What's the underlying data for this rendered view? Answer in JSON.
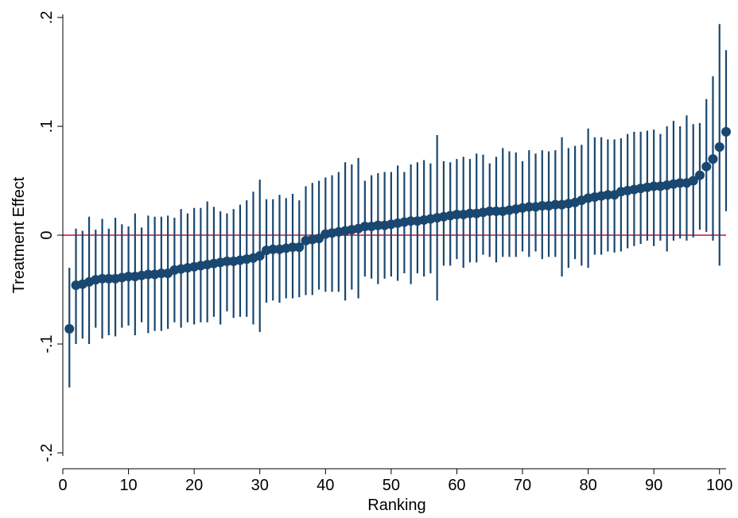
{
  "chart_data": {
    "type": "scatter",
    "title": "",
    "xlabel": "Ranking",
    "ylabel": "Treatment Effect",
    "xlim": [
      0,
      101
    ],
    "ylim": [
      -0.2,
      0.2
    ],
    "x_ticks": [
      0,
      10,
      20,
      30,
      40,
      50,
      60,
      70,
      80,
      90,
      100
    ],
    "x_tick_labels": [
      "0",
      "10",
      "20",
      "30",
      "40",
      "50",
      "60",
      "70",
      "80",
      "90",
      "100"
    ],
    "y_ticks": [
      -0.2,
      -0.1,
      0,
      0.1,
      0.2
    ],
    "y_tick_labels": [
      "-.2",
      "-.1",
      "0",
      ".1",
      ".2"
    ],
    "grid": false,
    "legend": "none",
    "reference_line": {
      "y": 0,
      "color": "#c0143c"
    },
    "series": [
      {
        "marker_color": "#1a476f",
        "x": [
          1,
          2,
          3,
          4,
          5,
          6,
          7,
          8,
          9,
          10,
          11,
          12,
          13,
          14,
          15,
          16,
          17,
          18,
          19,
          20,
          21,
          22,
          23,
          24,
          25,
          26,
          27,
          28,
          29,
          30,
          31,
          32,
          33,
          34,
          35,
          36,
          37,
          38,
          39,
          40,
          41,
          42,
          43,
          44,
          45,
          46,
          47,
          48,
          49,
          50,
          51,
          52,
          53,
          54,
          55,
          56,
          57,
          58,
          59,
          60,
          61,
          62,
          63,
          64,
          65,
          66,
          67,
          68,
          69,
          70,
          71,
          72,
          73,
          74,
          75,
          76,
          77,
          78,
          79,
          80,
          81,
          82,
          83,
          84,
          85,
          86,
          87,
          88,
          89,
          90,
          91,
          92,
          93,
          94,
          95,
          96,
          97,
          98,
          99,
          100,
          101
        ],
        "y": [
          -0.086,
          -0.046,
          -0.045,
          -0.043,
          -0.041,
          -0.04,
          -0.04,
          -0.04,
          -0.039,
          -0.038,
          -0.038,
          -0.037,
          -0.036,
          -0.036,
          -0.035,
          -0.035,
          -0.032,
          -0.031,
          -0.03,
          -0.029,
          -0.028,
          -0.027,
          -0.026,
          -0.025,
          -0.024,
          -0.024,
          -0.023,
          -0.022,
          -0.021,
          -0.019,
          -0.014,
          -0.013,
          -0.013,
          -0.012,
          -0.011,
          -0.011,
          -0.005,
          -0.004,
          -0.003,
          0.001,
          0.002,
          0.003,
          0.004,
          0.005,
          0.006,
          0.008,
          0.008,
          0.009,
          0.009,
          0.01,
          0.011,
          0.012,
          0.013,
          0.013,
          0.014,
          0.015,
          0.016,
          0.017,
          0.018,
          0.019,
          0.019,
          0.02,
          0.02,
          0.021,
          0.022,
          0.022,
          0.022,
          0.023,
          0.024,
          0.025,
          0.026,
          0.026,
          0.027,
          0.027,
          0.028,
          0.028,
          0.029,
          0.03,
          0.032,
          0.034,
          0.035,
          0.036,
          0.037,
          0.037,
          0.04,
          0.041,
          0.042,
          0.043,
          0.044,
          0.045,
          0.045,
          0.046,
          0.047,
          0.048,
          0.048,
          0.05,
          0.055,
          0.063,
          0.07,
          0.081,
          0.095
        ],
        "ci_low": [
          -0.14,
          -0.1,
          -0.095,
          -0.1,
          -0.085,
          -0.095,
          -0.092,
          -0.093,
          -0.085,
          -0.083,
          -0.092,
          -0.08,
          -0.09,
          -0.088,
          -0.088,
          -0.086,
          -0.08,
          -0.085,
          -0.08,
          -0.082,
          -0.08,
          -0.08,
          -0.075,
          -0.082,
          -0.07,
          -0.076,
          -0.075,
          -0.075,
          -0.082,
          -0.089,
          -0.062,
          -0.06,
          -0.062,
          -0.058,
          -0.058,
          -0.057,
          -0.055,
          -0.055,
          -0.05,
          -0.052,
          -0.052,
          -0.052,
          -0.06,
          -0.05,
          -0.058,
          -0.038,
          -0.04,
          -0.045,
          -0.04,
          -0.038,
          -0.042,
          -0.035,
          -0.045,
          -0.035,
          -0.038,
          -0.035,
          -0.06,
          -0.028,
          -0.028,
          -0.022,
          -0.03,
          -0.025,
          -0.025,
          -0.018,
          -0.02,
          -0.025,
          -0.02,
          -0.02,
          -0.02,
          -0.015,
          -0.02,
          -0.015,
          -0.022,
          -0.02,
          -0.02,
          -0.038,
          -0.03,
          -0.022,
          -0.028,
          -0.03,
          -0.018,
          -0.018,
          -0.015,
          -0.016,
          -0.015,
          -0.012,
          -0.01,
          -0.008,
          -0.005,
          -0.01,
          -0.005,
          -0.015,
          -0.005,
          -0.003,
          -0.005,
          -0.002,
          0.005,
          0.003,
          -0.005,
          -0.028,
          0.022
        ],
        "ci_high": [
          -0.03,
          0.006,
          0.004,
          0.017,
          0.005,
          0.015,
          0.006,
          0.016,
          0.01,
          0.008,
          0.02,
          0.007,
          0.018,
          0.017,
          0.017,
          0.018,
          0.016,
          0.024,
          0.02,
          0.025,
          0.025,
          0.031,
          0.026,
          0.022,
          0.02,
          0.024,
          0.028,
          0.032,
          0.04,
          0.051,
          0.033,
          0.033,
          0.037,
          0.034,
          0.038,
          0.032,
          0.045,
          0.048,
          0.05,
          0.053,
          0.055,
          0.058,
          0.067,
          0.065,
          0.071,
          0.05,
          0.055,
          0.057,
          0.058,
          0.058,
          0.064,
          0.058,
          0.065,
          0.067,
          0.069,
          0.066,
          0.092,
          0.068,
          0.067,
          0.07,
          0.072,
          0.07,
          0.075,
          0.074,
          0.066,
          0.072,
          0.08,
          0.077,
          0.076,
          0.068,
          0.078,
          0.075,
          0.078,
          0.077,
          0.078,
          0.09,
          0.08,
          0.082,
          0.083,
          0.098,
          0.09,
          0.09,
          0.088,
          0.088,
          0.089,
          0.093,
          0.095,
          0.095,
          0.096,
          0.097,
          0.093,
          0.1,
          0.105,
          0.1,
          0.11,
          0.102,
          0.103,
          0.125,
          0.146,
          0.194,
          0.17
        ]
      }
    ]
  }
}
